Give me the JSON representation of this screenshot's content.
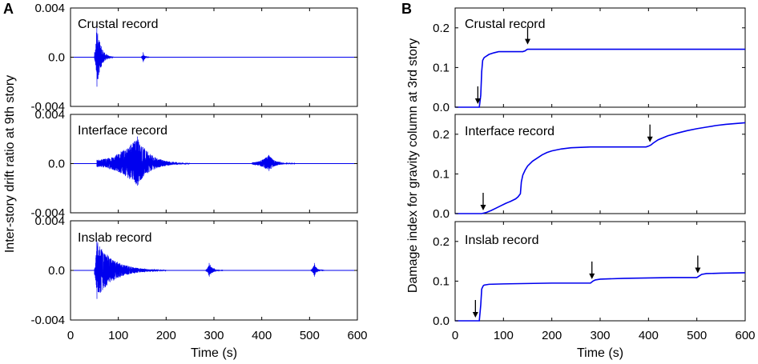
{
  "panel_letters": {
    "a": "A",
    "b": "B"
  },
  "chart_data": [
    {
      "type": "line",
      "panel": "A",
      "ylabel": "Inter-story drift ratio at 9th story",
      "xlabel": "Time (s)",
      "xlim": [
        0,
        600
      ],
      "xticks": [
        "0",
        "100",
        "200",
        "300",
        "400",
        "500",
        "600"
      ],
      "series_color": "#0000ee",
      "subplots": [
        {
          "label": "Crustal record",
          "ylim": [
            -0.004,
            0.004
          ],
          "yticks": [
            "0.004",
            "0.0",
            "-0.004"
          ],
          "bursts": [
            {
              "t_start": 50,
              "t_peak": 55,
              "t_end": 90,
              "peak": 0.0027,
              "min": -0.0024
            },
            {
              "t_start": 148,
              "t_peak": 152,
              "t_end": 165,
              "peak": 0.0004,
              "min": -0.0004
            }
          ]
        },
        {
          "label": "Interface record",
          "ylim": [
            -0.004,
            0.004
          ],
          "yticks": [
            "0.004",
            "0.0",
            "-0.004"
          ],
          "bursts": [
            {
              "t_start": 55,
              "t_peak": 140,
              "t_end": 250,
              "peak": 0.0022,
              "min": -0.0018
            },
            {
              "t_start": 380,
              "t_peak": 415,
              "t_end": 470,
              "peak": 0.0007,
              "min": -0.0006
            }
          ]
        },
        {
          "label": "Inslab record",
          "ylim": [
            -0.004,
            0.004
          ],
          "yticks": [
            "0.004",
            "0.0",
            "-0.004"
          ],
          "bursts": [
            {
              "t_start": 50,
              "t_peak": 55,
              "t_end": 200,
              "peak": 0.0024,
              "min": -0.0023
            },
            {
              "t_start": 283,
              "t_peak": 290,
              "t_end": 320,
              "peak": 0.0006,
              "min": -0.0005
            },
            {
              "t_start": 503,
              "t_peak": 510,
              "t_end": 530,
              "peak": 0.0006,
              "min": -0.0005
            }
          ]
        }
      ]
    },
    {
      "type": "line",
      "panel": "B",
      "ylabel": "Damage index for gravity column at 3rd story",
      "xlabel": "Time (s)",
      "xlim": [
        0,
        600
      ],
      "xticks": [
        "0",
        "100",
        "200",
        "300",
        "400",
        "500",
        "600"
      ],
      "series_color": "#0000ee",
      "subplots": [
        {
          "label": "Crustal record",
          "ylim": [
            0,
            0.25
          ],
          "yticks": [
            "0.2",
            "0.1",
            "0.0"
          ],
          "ytick_values": [
            0.2,
            0.1,
            0.0
          ],
          "series": {
            "x": [
              0,
              50,
              53,
              55,
              57,
              60,
              70,
              80,
              90,
              100,
              140,
              145,
              148,
              150,
              155,
              200,
              300,
              400,
              500,
              600
            ],
            "y": [
              0,
              0,
              0.03,
              0.09,
              0.118,
              0.125,
              0.133,
              0.137,
              0.14,
              0.14,
              0.14,
              0.142,
              0.145,
              0.146,
              0.146,
              0.146,
              0.146,
              0.146,
              0.146,
              0.146
            ]
          },
          "arrows": [
            {
              "t": 47,
              "at_y": 0.0
            },
            {
              "t": 150,
              "at_y": 0.15
            }
          ]
        },
        {
          "label": "Interface record",
          "ylim": [
            0,
            0.25
          ],
          "yticks": [
            "0.2",
            "0.1",
            "0.0"
          ],
          "ytick_values": [
            0.2,
            0.1,
            0.0
          ],
          "series": {
            "x": [
              0,
              55,
              65,
              75,
              85,
              95,
              105,
              115,
              125,
              130,
              135,
              137,
              140,
              145,
              150,
              160,
              170,
              180,
              190,
              200,
              220,
              240,
              260,
              280,
              300,
              320,
              340,
              360,
              380,
              395,
              400,
              405,
              410,
              420,
              440,
              460,
              480,
              500,
              520,
              540,
              560,
              580,
              600
            ],
            "y": [
              0,
              0,
              0.003,
              0.008,
              0.014,
              0.02,
              0.026,
              0.031,
              0.037,
              0.042,
              0.05,
              0.08,
              0.097,
              0.11,
              0.12,
              0.132,
              0.14,
              0.148,
              0.154,
              0.158,
              0.163,
              0.166,
              0.167,
              0.168,
              0.168,
              0.168,
              0.168,
              0.168,
              0.168,
              0.168,
              0.17,
              0.173,
              0.178,
              0.186,
              0.196,
              0.203,
              0.209,
              0.214,
              0.218,
              0.222,
              0.225,
              0.227,
              0.229
            ]
          },
          "arrows": [
            {
              "t": 58,
              "at_y": 0.0
            },
            {
              "t": 403,
              "at_y": 0.172
            }
          ]
        },
        {
          "label": "Inslab record",
          "ylim": [
            0,
            0.25
          ],
          "yticks": [
            "0.2",
            "0.1",
            "0.0"
          ],
          "ytick_values": [
            0.2,
            0.1,
            0.0
          ],
          "series": {
            "x": [
              0,
              50,
              53,
              55,
              58,
              60,
              70,
              100,
              150,
              200,
              250,
              280,
              285,
              290,
              300,
              350,
              400,
              450,
              500,
              505,
              510,
              520,
              550,
              600
            ],
            "y": [
              0,
              0,
              0.04,
              0.08,
              0.088,
              0.09,
              0.092,
              0.093,
              0.094,
              0.095,
              0.095,
              0.095,
              0.1,
              0.103,
              0.105,
              0.107,
              0.108,
              0.109,
              0.109,
              0.113,
              0.117,
              0.119,
              0.12,
              0.121
            ]
          },
          "arrows": [
            {
              "t": 42,
              "at_y": 0.0
            },
            {
              "t": 283,
              "at_y": 0.097
            },
            {
              "t": 502,
              "at_y": 0.112
            }
          ]
        }
      ]
    }
  ]
}
